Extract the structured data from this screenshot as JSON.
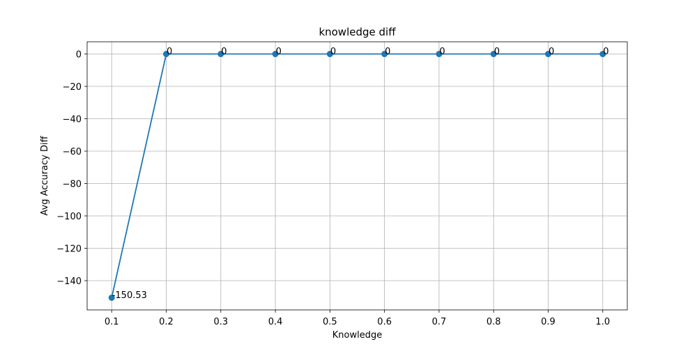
{
  "chart_data": {
    "type": "line",
    "title": "knowledge diff",
    "xlabel": "Knowledge",
    "ylabel": "Avg Accuracy Diff",
    "x": [
      0.1,
      0.2,
      0.3,
      0.4,
      0.5,
      0.6,
      0.7,
      0.8,
      0.9,
      1.0
    ],
    "series": [
      {
        "values": [
          -150.53,
          0,
          0,
          0,
          0,
          0,
          0,
          0,
          0,
          0
        ],
        "color": "#1f77b4",
        "marker": "circle"
      }
    ],
    "data_labels": [
      "-150.53",
      "0",
      "0",
      "0",
      "0",
      "0",
      "0",
      "0",
      "0",
      "0"
    ],
    "xticks": [
      0.1,
      0.2,
      0.3,
      0.4,
      0.5,
      0.6,
      0.7,
      0.8,
      0.9,
      1.0
    ],
    "xtick_labels": [
      "0.1",
      "0.2",
      "0.3",
      "0.4",
      "0.5",
      "0.6",
      "0.7",
      "0.8",
      "0.9",
      "1.0"
    ],
    "yticks": [
      0,
      -20,
      -40,
      -60,
      -80,
      -100,
      -120,
      -140
    ],
    "ytick_labels": [
      "0",
      "−20",
      "−40",
      "−60",
      "−80",
      "−100",
      "−120",
      "−140"
    ],
    "xlim": [
      0.055,
      1.045
    ],
    "ylim": [
      -158.06,
      7.53
    ],
    "grid": true,
    "legend": false
  }
}
